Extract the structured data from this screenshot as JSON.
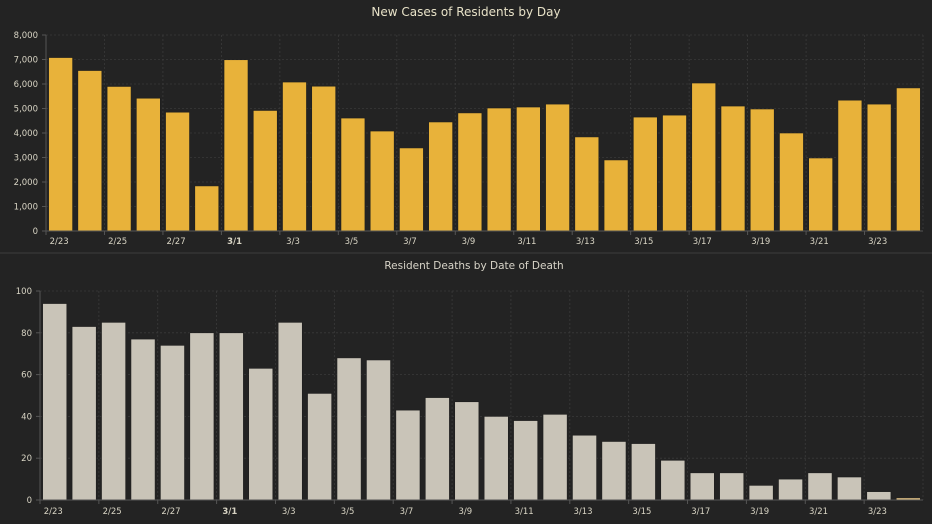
{
  "chart_data": [
    {
      "type": "bar",
      "title": "New Cases of Residents by Day",
      "xlabel": "",
      "ylabel": "",
      "ylim": [
        0,
        8000
      ],
      "yticks": [
        0,
        1000,
        2000,
        3000,
        4000,
        5000,
        6000,
        7000,
        8000
      ],
      "ytick_labels": [
        "0",
        "1,000",
        "2,000",
        "3,000",
        "4,000",
        "5,000",
        "6,000",
        "7,000",
        "8,000"
      ],
      "grid": true,
      "bar_color": "#e8b23a",
      "categories": [
        "2/23",
        "2/24",
        "2/25",
        "2/26",
        "2/27",
        "2/28",
        "3/1",
        "3/2",
        "3/3",
        "3/4",
        "3/5",
        "3/6",
        "3/7",
        "3/8",
        "3/9",
        "3/10",
        "3/11",
        "3/12",
        "3/13",
        "3/14",
        "3/15",
        "3/16",
        "3/17",
        "3/18",
        "3/19",
        "3/20",
        "3/21",
        "3/22",
        "3/23",
        "3/24"
      ],
      "xtick_labels": [
        "2/23",
        "2/25",
        "2/27",
        "3/1",
        "3/3",
        "3/5",
        "3/7",
        "3/9",
        "3/11",
        "3/13",
        "3/15",
        "3/17",
        "3/19",
        "3/21",
        "3/23"
      ],
      "values": [
        7080,
        6550,
        5900,
        5420,
        4850,
        1840,
        6990,
        4920,
        6080,
        5910,
        4610,
        4080,
        3390,
        4450,
        4820,
        5020,
        5060,
        5180,
        3840,
        2900,
        4650,
        4730,
        6040,
        5100,
        4980,
        4000,
        2980,
        5340,
        5180,
        5840
      ]
    },
    {
      "type": "bar",
      "title": "Resident Deaths by Date of Death",
      "xlabel": "",
      "ylabel": "",
      "ylim": [
        0,
        100
      ],
      "yticks": [
        0,
        20,
        40,
        60,
        80,
        100
      ],
      "ytick_labels": [
        "0",
        "20",
        "40",
        "60",
        "80",
        "100"
      ],
      "grid": true,
      "bar_color": "#c9c4b8",
      "highlight_color": "#e8c98a",
      "highlight_index": 29,
      "categories": [
        "2/23",
        "2/24",
        "2/25",
        "2/26",
        "2/27",
        "2/28",
        "3/1",
        "3/2",
        "3/3",
        "3/4",
        "3/5",
        "3/6",
        "3/7",
        "3/8",
        "3/9",
        "3/10",
        "3/11",
        "3/12",
        "3/13",
        "3/14",
        "3/15",
        "3/16",
        "3/17",
        "3/18",
        "3/19",
        "3/20",
        "3/21",
        "3/22",
        "3/23",
        "3/24"
      ],
      "xtick_labels": [
        "2/23",
        "2/25",
        "2/27",
        "3/1",
        "3/3",
        "3/5",
        "3/7",
        "3/9",
        "3/11",
        "3/13",
        "3/15",
        "3/17",
        "3/19",
        "3/21",
        "3/23"
      ],
      "values": [
        94,
        83,
        85,
        77,
        74,
        80,
        80,
        63,
        85,
        51,
        68,
        67,
        43,
        49,
        47,
        40,
        38,
        41,
        31,
        28,
        27,
        19,
        13,
        13,
        7,
        10,
        13,
        11,
        4,
        1
      ]
    }
  ]
}
